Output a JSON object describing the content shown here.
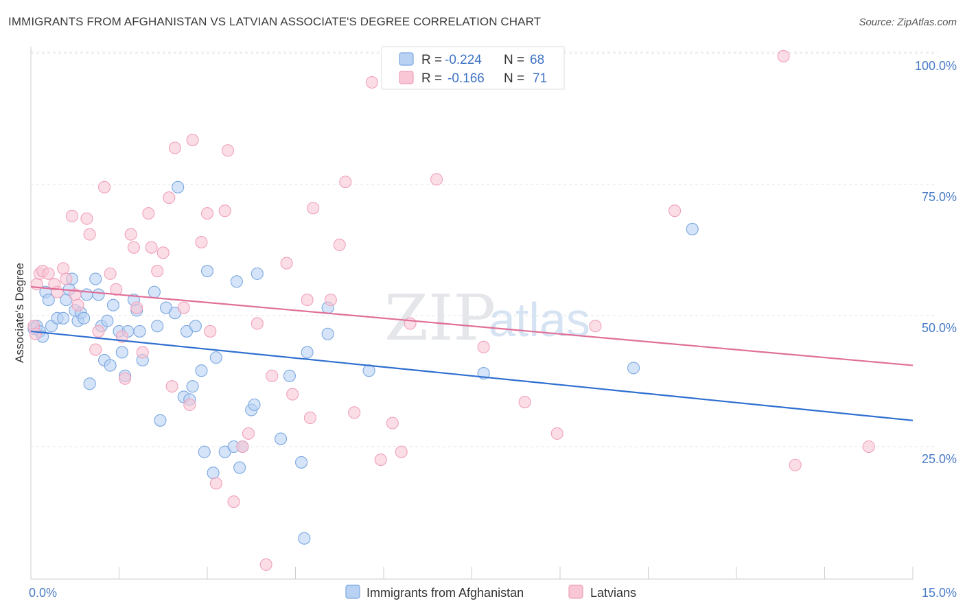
{
  "title": "IMMIGRANTS FROM AFGHANISTAN VS LATVIAN ASSOCIATE'S DEGREE CORRELATION CHART",
  "source": "Source: ZipAtlas.com",
  "watermark": {
    "zip": "ZIP",
    "atlas": "atlas"
  },
  "chart_data": {
    "type": "scatter",
    "xlabel": "",
    "ylabel": "Associate's Degree",
    "xlim": [
      0,
      15
    ],
    "ylim": [
      0,
      102
    ],
    "x_tick_labels": [
      {
        "value": 0,
        "label": "0.0%"
      },
      {
        "value": 15,
        "label": "15.0%"
      }
    ],
    "y_tick_labels": [
      {
        "value": 25,
        "label": "25.0%"
      },
      {
        "value": 50,
        "label": "50.0%"
      },
      {
        "value": 75,
        "label": "75.0%"
      },
      {
        "value": 100,
        "label": "100.0%"
      }
    ],
    "x_minor_ticks": [
      0,
      1.5,
      3,
      4.5,
      6,
      7.5,
      9,
      10.5,
      12,
      13.5,
      15
    ],
    "grid": true,
    "legend_position": "top-center",
    "legend": [
      {
        "r_label": "R =",
        "r_value": "-0.224",
        "n_label": "N =",
        "n_value": "68",
        "color": "#7aa7e0"
      },
      {
        "r_label": "R =",
        "r_value": "-0.166",
        "n_label": "N =",
        "n_value": "71",
        "color": "#f0a0bb"
      }
    ],
    "series": [
      {
        "name": "Immigrants from Afghanistan",
        "fill": "#b9d2f3",
        "stroke": "#7aa7e0",
        "trend": {
          "x": [
            0,
            15
          ],
          "y": [
            47.0,
            30.0
          ],
          "color": "#2f6fd0"
        },
        "points": [
          [
            0.05,
            47.5
          ],
          [
            0.1,
            48.0
          ],
          [
            0.15,
            47.0
          ],
          [
            0.2,
            46.0
          ],
          [
            0.25,
            54.5
          ],
          [
            0.3,
            53.0
          ],
          [
            0.35,
            48.0
          ],
          [
            0.45,
            49.5
          ],
          [
            0.55,
            49.5
          ],
          [
            0.6,
            53.0
          ],
          [
            0.65,
            55.0
          ],
          [
            0.7,
            57.0
          ],
          [
            0.75,
            51.0
          ],
          [
            0.8,
            49.0
          ],
          [
            0.85,
            50.5
          ],
          [
            0.9,
            49.5
          ],
          [
            0.95,
            54.0
          ],
          [
            1.0,
            37.0
          ],
          [
            1.1,
            57.0
          ],
          [
            1.15,
            54.0
          ],
          [
            1.2,
            48.0
          ],
          [
            1.25,
            41.5
          ],
          [
            1.3,
            49.0
          ],
          [
            1.35,
            40.5
          ],
          [
            1.4,
            52.0
          ],
          [
            1.5,
            47.0
          ],
          [
            1.55,
            43.0
          ],
          [
            1.6,
            38.5
          ],
          [
            1.65,
            47.0
          ],
          [
            1.75,
            53.0
          ],
          [
            1.8,
            51.0
          ],
          [
            1.85,
            47.0
          ],
          [
            1.9,
            41.5
          ],
          [
            2.1,
            54.5
          ],
          [
            2.15,
            48.0
          ],
          [
            2.2,
            30.0
          ],
          [
            2.3,
            51.5
          ],
          [
            2.45,
            50.5
          ],
          [
            2.5,
            74.5
          ],
          [
            2.6,
            34.5
          ],
          [
            2.65,
            47.0
          ],
          [
            2.7,
            34.0
          ],
          [
            2.75,
            36.5
          ],
          [
            2.8,
            48.0
          ],
          [
            2.9,
            39.5
          ],
          [
            2.95,
            24.0
          ],
          [
            3.0,
            58.5
          ],
          [
            3.1,
            20.0
          ],
          [
            3.15,
            42.0
          ],
          [
            3.3,
            24.0
          ],
          [
            3.45,
            25.0
          ],
          [
            3.5,
            56.5
          ],
          [
            3.55,
            21.0
          ],
          [
            3.6,
            25.0
          ],
          [
            3.75,
            32.0
          ],
          [
            3.8,
            33.0
          ],
          [
            3.85,
            58.0
          ],
          [
            4.25,
            26.5
          ],
          [
            4.4,
            38.5
          ],
          [
            4.6,
            22.0
          ],
          [
            4.65,
            7.5
          ],
          [
            4.7,
            43.0
          ],
          [
            5.05,
            51.5
          ],
          [
            5.05,
            46.5
          ],
          [
            5.75,
            39.5
          ],
          [
            7.7,
            39.0
          ],
          [
            10.25,
            40.0
          ],
          [
            11.25,
            66.5
          ]
        ]
      },
      {
        "name": "Latvians",
        "fill": "#f8c6d5",
        "stroke": "#f0a0bb",
        "trend": {
          "x": [
            0,
            15
          ],
          "y": [
            55.5,
            40.5
          ],
          "color": "#e06f98"
        },
        "points": [
          [
            0.05,
            48.0
          ],
          [
            0.1,
            56.0
          ],
          [
            0.15,
            58.0
          ],
          [
            0.2,
            58.5
          ],
          [
            0.3,
            58.0
          ],
          [
            0.4,
            56.0
          ],
          [
            0.45,
            54.5
          ],
          [
            0.55,
            59.0
          ],
          [
            0.6,
            57.0
          ],
          [
            0.7,
            69.0
          ],
          [
            0.75,
            54.0
          ],
          [
            0.8,
            52.0
          ],
          [
            0.95,
            68.5
          ],
          [
            1.0,
            65.5
          ],
          [
            1.1,
            43.5
          ],
          [
            1.15,
            47.0
          ],
          [
            1.25,
            74.5
          ],
          [
            1.35,
            58.0
          ],
          [
            1.45,
            55.0
          ],
          [
            1.55,
            46.0
          ],
          [
            1.6,
            38.0
          ],
          [
            1.7,
            65.5
          ],
          [
            1.75,
            63.0
          ],
          [
            1.8,
            51.5
          ],
          [
            1.9,
            43.0
          ],
          [
            2.0,
            69.5
          ],
          [
            2.05,
            63.0
          ],
          [
            2.15,
            58.5
          ],
          [
            2.25,
            62.0
          ],
          [
            2.35,
            72.5
          ],
          [
            2.4,
            36.5
          ],
          [
            2.45,
            82.0
          ],
          [
            2.6,
            51.5
          ],
          [
            2.7,
            33.0
          ],
          [
            2.75,
            83.5
          ],
          [
            2.9,
            64.0
          ],
          [
            3.0,
            69.5
          ],
          [
            3.05,
            47.0
          ],
          [
            3.15,
            18.0
          ],
          [
            3.3,
            70.0
          ],
          [
            3.35,
            81.5
          ],
          [
            3.45,
            14.5
          ],
          [
            3.6,
            25.0
          ],
          [
            3.7,
            27.5
          ],
          [
            3.85,
            48.5
          ],
          [
            4.0,
            2.5
          ],
          [
            4.1,
            38.5
          ],
          [
            4.35,
            60.0
          ],
          [
            4.45,
            35.0
          ],
          [
            4.7,
            53.0
          ],
          [
            4.75,
            30.5
          ],
          [
            4.8,
            70.5
          ],
          [
            5.1,
            53.0
          ],
          [
            5.25,
            63.5
          ],
          [
            5.35,
            75.5
          ],
          [
            5.5,
            31.5
          ],
          [
            5.8,
            94.5
          ],
          [
            5.95,
            22.5
          ],
          [
            6.15,
            29.5
          ],
          [
            6.3,
            24.0
          ],
          [
            6.45,
            48.5
          ],
          [
            6.9,
            76.0
          ],
          [
            7.7,
            44.0
          ],
          [
            8.4,
            33.5
          ],
          [
            8.95,
            27.5
          ],
          [
            9.6,
            48.0
          ],
          [
            10.95,
            70.0
          ],
          [
            12.8,
            99.5
          ],
          [
            13.0,
            21.5
          ],
          [
            14.25,
            25.0
          ],
          [
            0.08,
            46.5
          ]
        ]
      }
    ]
  }
}
